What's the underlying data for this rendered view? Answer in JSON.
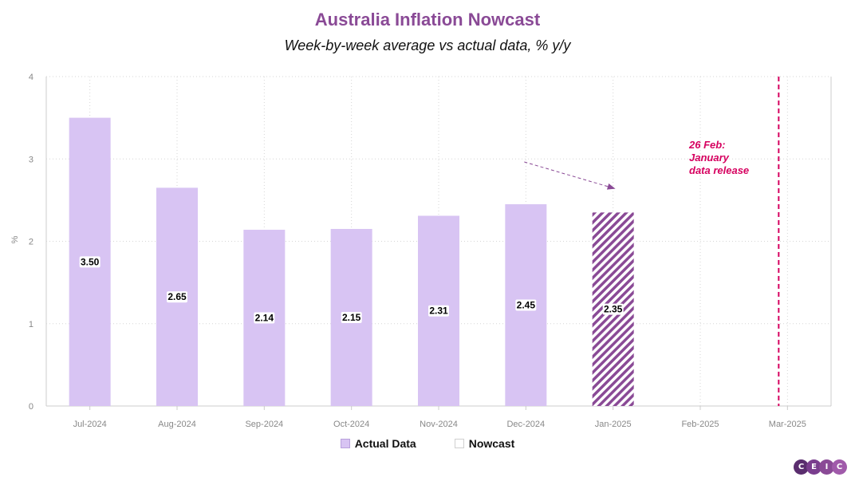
{
  "chart_data": {
    "type": "bar",
    "title": "Australia Inflation Nowcast",
    "subtitle": "Week-by-week average vs actual data, % y/y",
    "ylabel": "%",
    "ylim": [
      0,
      4
    ],
    "yticks": [
      "0",
      "1",
      "2",
      "3",
      "4"
    ],
    "grid": true,
    "categories": [
      "Jul-2024",
      "Aug-2024",
      "Sep-2024",
      "Oct-2024",
      "Nov-2024",
      "Dec-2024",
      "Jan-2025",
      "Feb-2025",
      "Mar-2025"
    ],
    "series": [
      {
        "name": "Actual Data",
        "color": "#d8c4f3",
        "values": [
          3.5,
          2.65,
          2.14,
          2.15,
          2.31,
          2.45,
          null,
          null,
          null
        ]
      },
      {
        "name": "Nowcast",
        "color": "#8a4a96",
        "pattern": "diagonal-hatch",
        "values": [
          null,
          null,
          null,
          null,
          null,
          null,
          2.35,
          null,
          null
        ]
      }
    ],
    "data_labels": [
      "3.50",
      "2.65",
      "2.14",
      "2.15",
      "2.31",
      "2.45",
      "2.35"
    ],
    "annotation": {
      "lines": [
        "26 Feb:",
        "January",
        "data release"
      ],
      "color": "#d6005f",
      "vertical_line_at": "Mar-2025"
    },
    "legend": {
      "placement": "bottom-center",
      "items": [
        "Actual Data",
        "Nowcast"
      ]
    }
  },
  "logo": {
    "letters": [
      "C",
      "E",
      "I",
      "C"
    ],
    "colors": [
      "#5a2d6e",
      "#7a3d8e",
      "#8a4a96",
      "#a05aaa"
    ]
  }
}
